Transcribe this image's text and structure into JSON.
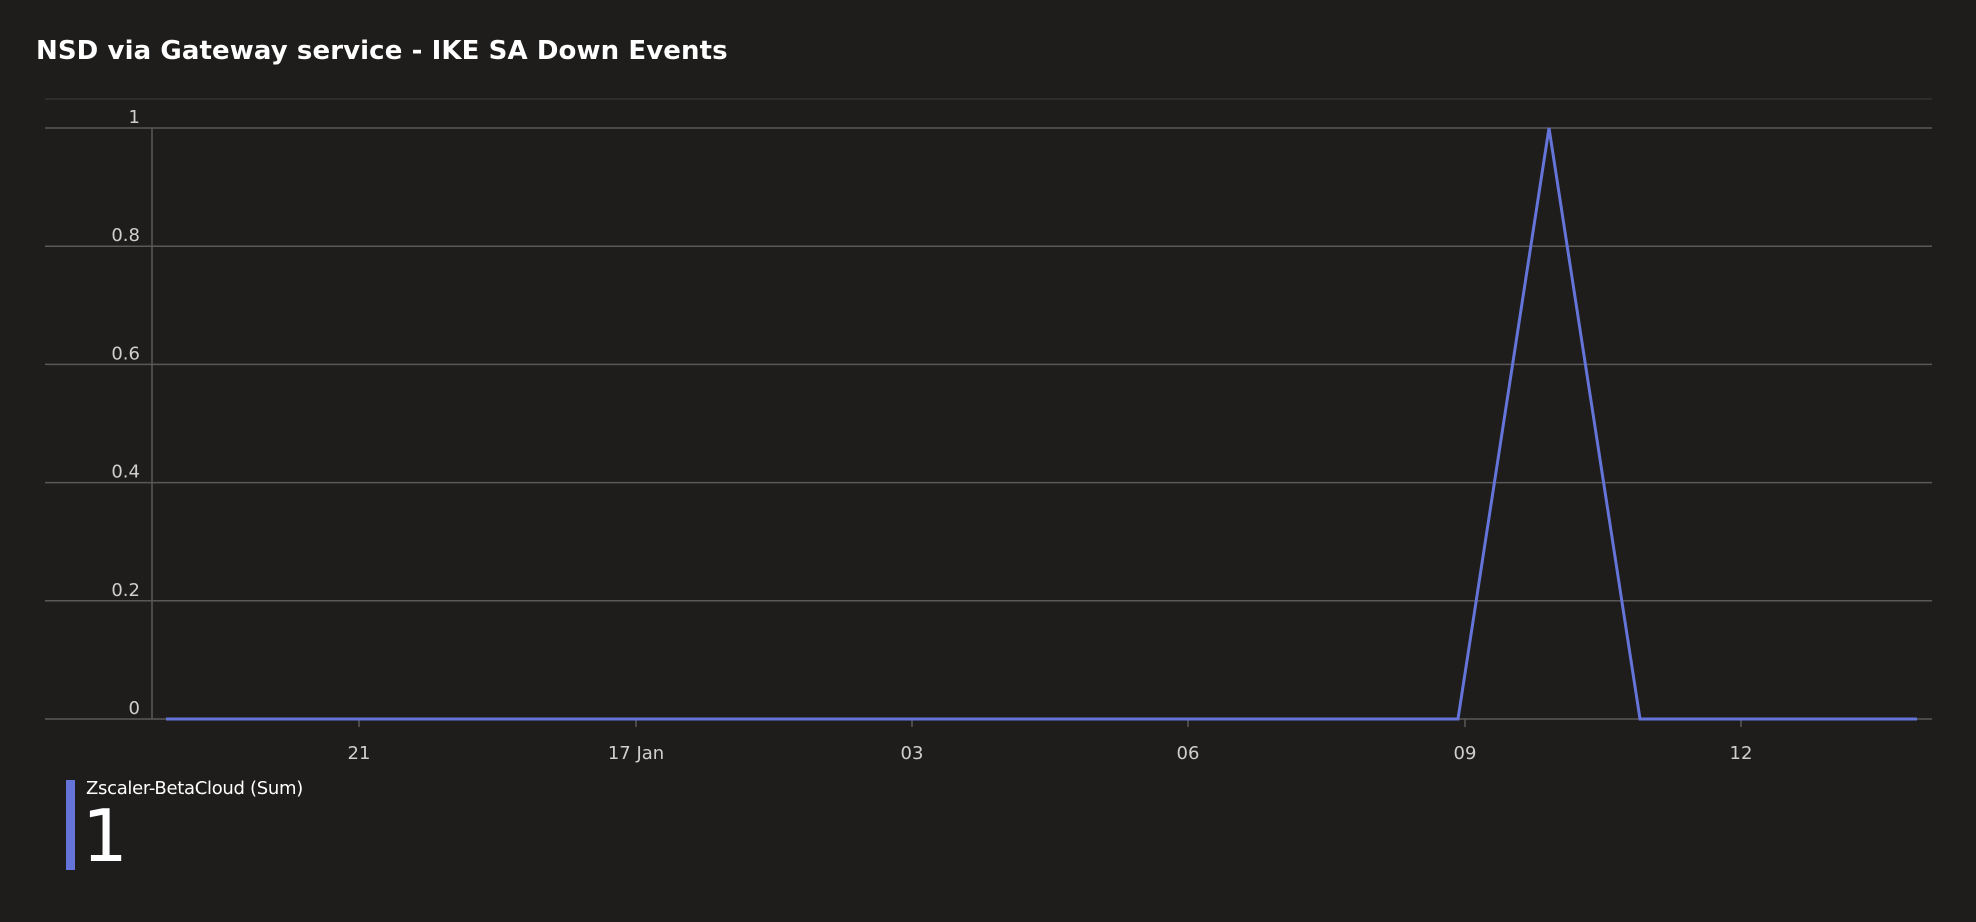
{
  "panel": {
    "title": "NSD via Gateway service - IKE SA Down Events"
  },
  "colors": {
    "background": "#1e1d1c",
    "series": "#6474d8",
    "grid": "#5a5958",
    "text": "#cfcfcf"
  },
  "chart_data": {
    "type": "line",
    "title": "NSD via Gateway service - IKE SA Down Events",
    "xlabel": "",
    "ylabel": "",
    "ylim": [
      0,
      1
    ],
    "yticks": [
      "0",
      "0.2",
      "0.4",
      "0.6",
      "0.8",
      "1"
    ],
    "xticks": [
      "21",
      "17 Jan",
      "03",
      "06",
      "09",
      "12"
    ],
    "grid": true,
    "series": [
      {
        "name": "Zscaler-BetaCloud (Sum)",
        "values": [
          0,
          0,
          0,
          1,
          0,
          0,
          0
        ]
      }
    ]
  },
  "legend": {
    "name": "Zscaler-BetaCloud (Sum)",
    "value": "1"
  }
}
